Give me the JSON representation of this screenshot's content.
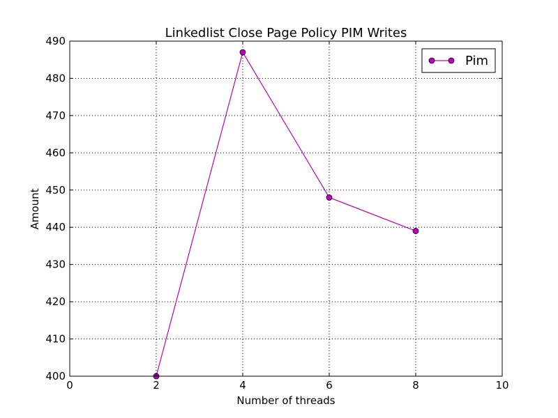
{
  "chart_data": {
    "type": "line",
    "title": "Linkedlist Close Page Policy PIM Writes",
    "xlabel": "Number of threads",
    "ylabel": "Amount",
    "xlim": [
      0,
      10
    ],
    "ylim": [
      400,
      490
    ],
    "xticks": [
      0,
      2,
      4,
      6,
      8,
      10
    ],
    "yticks": [
      400,
      410,
      420,
      430,
      440,
      450,
      460,
      470,
      480,
      490
    ],
    "grid": true,
    "legend_position": "top-right",
    "series": [
      {
        "name": "Pim",
        "color": "#bf00bf",
        "x": [
          2,
          4,
          6,
          8
        ],
        "y": [
          400,
          487,
          448,
          439
        ]
      }
    ]
  }
}
